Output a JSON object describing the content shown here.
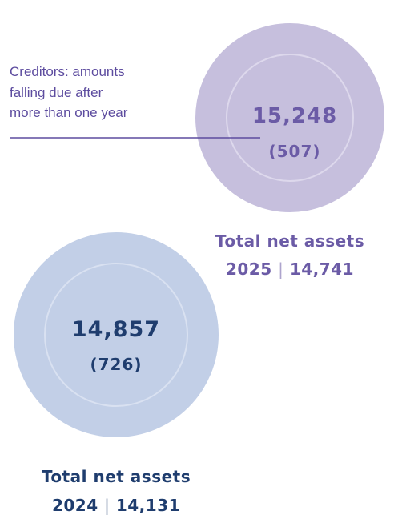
{
  "annotation": {
    "lines": [
      "Creditors: amounts",
      "falling due after",
      "more than one year"
    ]
  },
  "circles": [
    {
      "value": "15,248",
      "sub_value": "(507)",
      "caption": {
        "title": "Total net assets",
        "year": "2025",
        "separator": "|",
        "total": "14,741"
      }
    },
    {
      "value": "14,857",
      "sub_value": "(726)",
      "caption": {
        "title": "Total net assets",
        "year": "2024",
        "separator": "|",
        "total": "14,131"
      }
    }
  ]
}
